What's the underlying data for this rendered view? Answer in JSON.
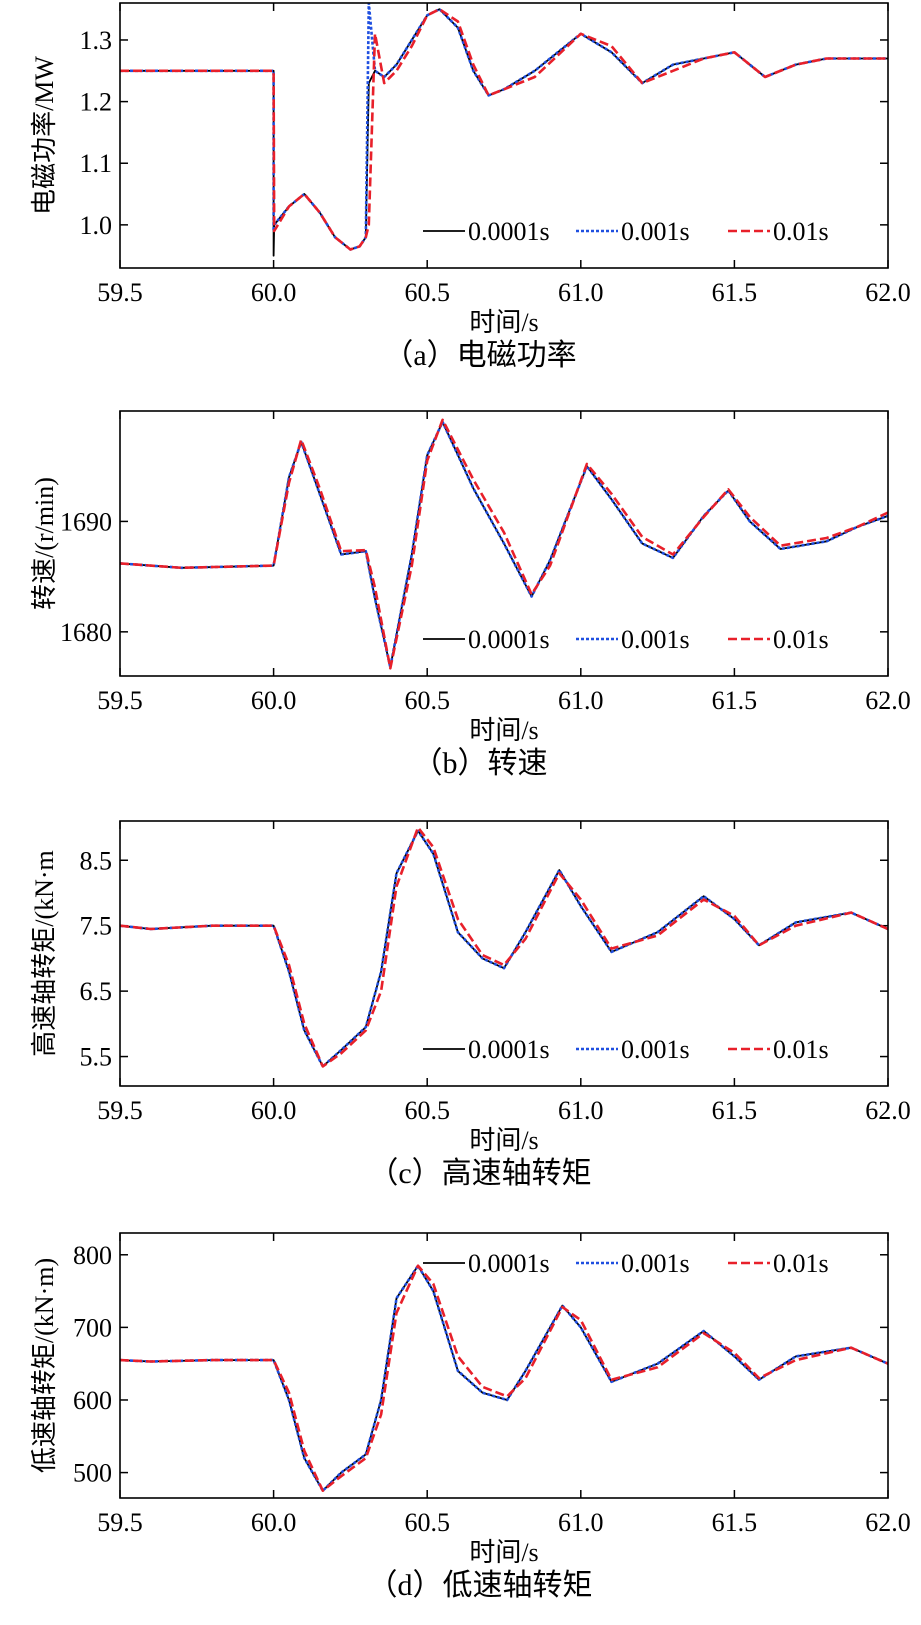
{
  "figure": {
    "legend_entries": [
      {
        "label": "0.0001s",
        "color": "#000000",
        "dash": "solid"
      },
      {
        "label": "0.001s",
        "color": "#1f4fe0",
        "dash": "dotted"
      },
      {
        "label": "0.01s",
        "color": "#e8202a",
        "dash": "dashed"
      }
    ]
  },
  "chart_data": [
    {
      "type": "line",
      "caption": "（a）电磁功率",
      "xlabel": "时间/s",
      "ylabel": "电磁功率/MW",
      "xlim": [
        59.5,
        62.0
      ],
      "ylim": [
        0.93,
        1.36
      ],
      "xticks": [
        "59.5",
        "60.0",
        "60.5",
        "61.0",
        "61.5",
        "62.0"
      ],
      "yticks": [
        "1.0",
        "1.1",
        "1.2",
        "1.3"
      ],
      "legend_position": "lower-right",
      "x": [
        59.5,
        60.0,
        60.0,
        60.002,
        60.05,
        60.1,
        60.15,
        60.2,
        60.25,
        60.28,
        60.3,
        60.31,
        60.33,
        60.36,
        60.4,
        60.45,
        60.5,
        60.54,
        60.6,
        60.65,
        60.7,
        60.75,
        60.85,
        61.0,
        61.1,
        61.2,
        61.3,
        61.4,
        61.5,
        61.6,
        61.7,
        61.8,
        61.9,
        62.0
      ],
      "series": [
        {
          "name": "0.0001s",
          "values": [
            1.25,
            1.25,
            0.95,
            1.0,
            1.03,
            1.05,
            1.02,
            0.98,
            0.96,
            0.965,
            0.98,
            1.23,
            1.25,
            1.24,
            1.26,
            1.3,
            1.34,
            1.35,
            1.32,
            1.25,
            1.21,
            1.22,
            1.25,
            1.31,
            1.28,
            1.23,
            1.26,
            1.27,
            1.28,
            1.24,
            1.26,
            1.27,
            1.27,
            1.27
          ]
        },
        {
          "name": "0.001s",
          "values": [
            1.25,
            1.25,
            0.99,
            1.0,
            1.03,
            1.05,
            1.02,
            0.98,
            0.96,
            0.965,
            0.98,
            1.36,
            1.25,
            1.24,
            1.26,
            1.3,
            1.34,
            1.35,
            1.32,
            1.25,
            1.21,
            1.22,
            1.25,
            1.31,
            1.28,
            1.23,
            1.26,
            1.27,
            1.28,
            1.24,
            1.26,
            1.27,
            1.27,
            1.27
          ]
        },
        {
          "name": "0.01s",
          "values": [
            1.25,
            1.25,
            1.25,
            0.99,
            1.03,
            1.05,
            1.02,
            0.98,
            0.96,
            0.965,
            0.98,
            1.0,
            1.31,
            1.23,
            1.25,
            1.29,
            1.34,
            1.35,
            1.33,
            1.26,
            1.21,
            1.22,
            1.24,
            1.31,
            1.29,
            1.23,
            1.25,
            1.27,
            1.28,
            1.24,
            1.26,
            1.27,
            1.27,
            1.27
          ]
        }
      ]
    },
    {
      "type": "line",
      "caption": "（b）转速",
      "xlabel": "时间/s",
      "ylabel": "转速/(r/min)",
      "xlim": [
        59.5,
        62.0
      ],
      "ylim": [
        1676,
        1700
      ],
      "xticks": [
        "59.5",
        "60.0",
        "60.5",
        "61.0",
        "61.5",
        "62.0"
      ],
      "yticks": [
        "1680",
        "1690"
      ],
      "legend_position": "lower-right",
      "x": [
        59.5,
        59.7,
        60.0,
        60.05,
        60.09,
        60.15,
        60.22,
        60.3,
        60.33,
        60.38,
        60.45,
        60.5,
        60.55,
        60.65,
        60.75,
        60.84,
        60.9,
        61.02,
        61.1,
        61.2,
        61.3,
        61.4,
        61.48,
        61.55,
        61.65,
        61.8,
        61.9,
        62.0
      ],
      "series": [
        {
          "name": "0.0001s",
          "values": [
            1686.2,
            1685.8,
            1686.0,
            1694.0,
            1697.2,
            1692.5,
            1687.0,
            1687.3,
            1683.0,
            1676.8,
            1687.0,
            1696.0,
            1699.0,
            1693.0,
            1688.0,
            1683.2,
            1686.5,
            1695.0,
            1692.0,
            1688.0,
            1686.7,
            1690.5,
            1692.8,
            1690.0,
            1687.5,
            1688.2,
            1689.5,
            1690.5
          ]
        },
        {
          "name": "0.001s",
          "values": [
            1686.2,
            1685.8,
            1686.0,
            1694.0,
            1697.2,
            1692.5,
            1687.0,
            1687.3,
            1683.0,
            1676.8,
            1687.0,
            1696.0,
            1699.0,
            1693.0,
            1688.0,
            1683.2,
            1686.5,
            1695.0,
            1692.0,
            1688.0,
            1686.7,
            1690.5,
            1692.8,
            1690.0,
            1687.5,
            1688.2,
            1689.5,
            1690.5
          ]
        },
        {
          "name": "0.01s",
          "values": [
            1686.2,
            1685.8,
            1686.0,
            1693.5,
            1697.4,
            1693.0,
            1687.3,
            1687.4,
            1684.0,
            1676.7,
            1686.0,
            1695.5,
            1699.2,
            1693.8,
            1689.0,
            1683.4,
            1686.0,
            1695.2,
            1692.5,
            1688.6,
            1687.0,
            1690.4,
            1692.9,
            1690.4,
            1687.8,
            1688.5,
            1689.5,
            1690.8
          ]
        }
      ]
    },
    {
      "type": "line",
      "caption": "（c）高速轴转矩",
      "xlabel": "时间/s",
      "ylabel": "高速轴转矩/(kN·m",
      "xlim": [
        59.5,
        62.0
      ],
      "ylim": [
        5.05,
        9.1
      ],
      "xticks": [
        "59.5",
        "60.0",
        "60.5",
        "61.0",
        "61.5",
        "62.0"
      ],
      "yticks": [
        "5.5",
        "6.5",
        "7.5",
        "8.5"
      ],
      "legend_position": "lower-right",
      "x": [
        59.5,
        59.6,
        59.8,
        60.0,
        60.05,
        60.1,
        60.16,
        60.22,
        60.3,
        60.35,
        60.4,
        60.47,
        60.52,
        60.6,
        60.68,
        60.75,
        60.82,
        60.93,
        61.0,
        61.1,
        61.25,
        61.4,
        61.5,
        61.58,
        61.7,
        61.88,
        62.0
      ],
      "series": [
        {
          "name": "0.0001s",
          "values": [
            7.5,
            7.45,
            7.5,
            7.5,
            6.8,
            5.9,
            5.35,
            5.6,
            5.95,
            6.8,
            8.3,
            8.95,
            8.6,
            7.4,
            7.0,
            6.85,
            7.4,
            8.35,
            7.8,
            7.1,
            7.4,
            7.95,
            7.6,
            7.2,
            7.55,
            7.7,
            7.45
          ]
        },
        {
          "name": "0.001s",
          "values": [
            7.5,
            7.45,
            7.5,
            7.5,
            6.8,
            5.9,
            5.35,
            5.6,
            5.95,
            6.8,
            8.3,
            8.95,
            8.6,
            7.4,
            7.0,
            6.85,
            7.4,
            8.35,
            7.8,
            7.1,
            7.4,
            7.95,
            7.6,
            7.2,
            7.55,
            7.7,
            7.45
          ]
        },
        {
          "name": "0.01s",
          "values": [
            7.5,
            7.45,
            7.5,
            7.5,
            6.9,
            6.0,
            5.35,
            5.55,
            5.9,
            6.5,
            8.1,
            9.0,
            8.7,
            7.6,
            7.05,
            6.9,
            7.3,
            8.3,
            7.9,
            7.15,
            7.35,
            7.9,
            7.65,
            7.2,
            7.5,
            7.7,
            7.45
          ]
        }
      ]
    },
    {
      "type": "line",
      "caption": "（d）低速轴转矩",
      "xlabel": "时间/s",
      "ylabel": "低速轴转矩/(kN·m)",
      "xlim": [
        59.5,
        62.0
      ],
      "ylim": [
        465,
        830
      ],
      "xticks": [
        "59.5",
        "60.0",
        "60.5",
        "61.0",
        "61.5",
        "62.0"
      ],
      "yticks": [
        "500",
        "600",
        "700",
        "800"
      ],
      "legend_position": "upper-right",
      "x": [
        59.5,
        59.6,
        59.8,
        60.0,
        60.05,
        60.1,
        60.16,
        60.22,
        60.3,
        60.35,
        60.4,
        60.47,
        60.52,
        60.6,
        60.68,
        60.76,
        60.82,
        60.94,
        61.0,
        61.1,
        61.25,
        61.4,
        61.5,
        61.58,
        61.7,
        61.88,
        62.0
      ],
      "series": [
        {
          "name": "0.0001s",
          "values": [
            655,
            653,
            655,
            655,
            600,
            520,
            475,
            500,
            525,
            600,
            740,
            785,
            750,
            640,
            610,
            600,
            640,
            730,
            700,
            625,
            650,
            695,
            660,
            628,
            660,
            672,
            650
          ]
        },
        {
          "name": "0.001s",
          "values": [
            655,
            653,
            655,
            655,
            600,
            520,
            475,
            500,
            525,
            600,
            740,
            785,
            750,
            640,
            610,
            600,
            640,
            730,
            700,
            625,
            650,
            695,
            660,
            628,
            660,
            672,
            650
          ]
        },
        {
          "name": "0.01s",
          "values": [
            655,
            653,
            655,
            655,
            610,
            530,
            475,
            495,
            520,
            580,
            720,
            785,
            760,
            660,
            618,
            605,
            630,
            728,
            710,
            628,
            645,
            692,
            665,
            630,
            655,
            672,
            650
          ]
        }
      ]
    }
  ]
}
